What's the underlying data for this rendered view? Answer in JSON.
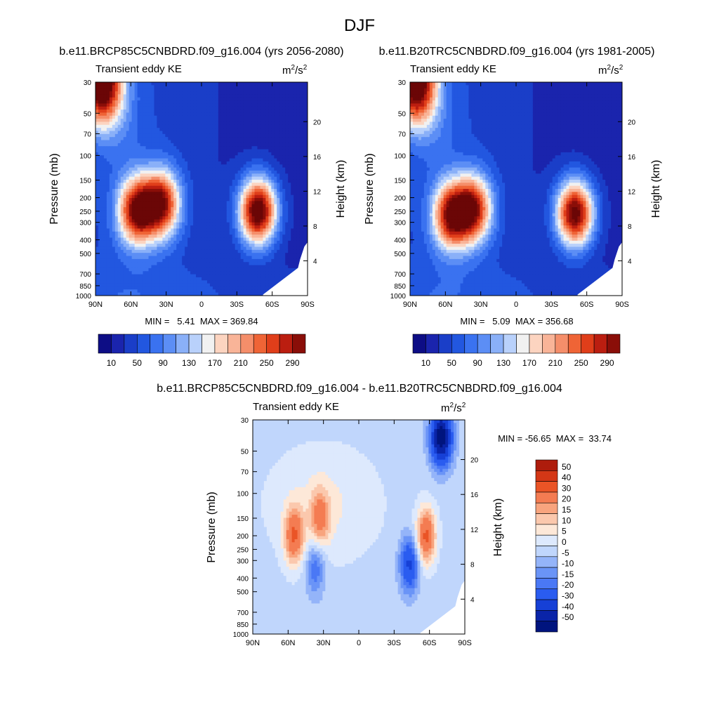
{
  "page": {
    "title": "DJF"
  },
  "colors": {
    "abs_levels": [
      "#0d0d85",
      "#1a24ad",
      "#1a3ec8",
      "#2257e0",
      "#3a72f0",
      "#5c8ef5",
      "#8ab0f8",
      "#b9d1fb",
      "#f1f1f1",
      "#fcd4c0",
      "#f9b498",
      "#f58e6a",
      "#ef6436",
      "#e03e1a",
      "#bb1e10",
      "#8a0e08",
      "#6b0606"
    ],
    "diff_levels": [
      "#00147e",
      "#0a24a8",
      "#1640d6",
      "#2a5cf0",
      "#4a78f5",
      "#6a94f7",
      "#94b4f9",
      "#c0d6fc",
      "#dde9fd",
      "#fde8d8",
      "#fbc8ad",
      "#f8a47e",
      "#f47c52",
      "#ea5426",
      "#d43716",
      "#ae1c0c"
    ]
  },
  "chart_data": [
    {
      "type": "heatmap",
      "panel": "top-left",
      "title": "b.e11.BRCP85C5CNBDRD.f09_g16.004 (yrs 2056-2080)",
      "subtitle_left": "Transient eddy KE",
      "units_base": "m",
      "units_sup1": "2",
      "units_mid": "/s",
      "units_sup2": "2",
      "ylabel": "Pressure (mb)",
      "ylabel_right": "Height (km)",
      "x_ticks": [
        "90N",
        "60N",
        "30N",
        "0",
        "30S",
        "60S",
        "90S"
      ],
      "y_ticks": [
        "30",
        "50",
        "70",
        "100",
        "150",
        "200",
        "250",
        "300",
        "400",
        "500",
        "700",
        "850",
        "1000"
      ],
      "y_right_ticks": [
        "20",
        "16",
        "12",
        "8",
        "4"
      ],
      "stats": "MIN =   5.41  MAX = 369.84",
      "min": 5.41,
      "max": 369.84,
      "colorbar_labels": [
        "10",
        "50",
        "90",
        "130",
        "170",
        "210",
        "250",
        "290"
      ],
      "legend": "below",
      "peaks": [
        {
          "lat": 55,
          "p": 250,
          "value": 300
        },
        {
          "lat": 34,
          "p": 220,
          "value": 290
        },
        {
          "lat": -48,
          "p": 250,
          "value": 360
        },
        {
          "lat": 85,
          "p": 30,
          "value": 370
        }
      ]
    },
    {
      "type": "heatmap",
      "panel": "top-right",
      "title": "b.e11.B20TRC5CNBDRD.f09_g16.004 (yrs 1981-2005)",
      "subtitle_left": "Transient eddy KE",
      "units_base": "m",
      "units_sup1": "2",
      "units_mid": "/s",
      "units_sup2": "2",
      "ylabel": "Pressure (mb)",
      "ylabel_right": "Height (km)",
      "x_ticks": [
        "90N",
        "60N",
        "30N",
        "0",
        "30S",
        "60S",
        "90S"
      ],
      "y_ticks": [
        "30",
        "50",
        "70",
        "100",
        "150",
        "200",
        "250",
        "300",
        "400",
        "500",
        "700",
        "850",
        "1000"
      ],
      "y_right_ticks": [
        "20",
        "16",
        "12",
        "8",
        "4"
      ],
      "stats": "MIN =   5.09  MAX = 356.68",
      "min": 5.09,
      "max": 356.68,
      "colorbar_labels": [
        "10",
        "50",
        "90",
        "130",
        "170",
        "210",
        "250",
        "290"
      ],
      "legend": "below",
      "peaks": [
        {
          "lat": 55,
          "p": 270,
          "value": 290
        },
        {
          "lat": 36,
          "p": 240,
          "value": 275
        },
        {
          "lat": -50,
          "p": 260,
          "value": 345
        },
        {
          "lat": 85,
          "p": 30,
          "value": 356
        }
      ]
    },
    {
      "type": "heatmap",
      "panel": "bottom-difference",
      "title": "b.e11.BRCP85C5CNBDRD.f09_g16.004 - b.e11.B20TRC5CNBDRD.f09_g16.004",
      "subtitle_left": "Transient eddy KE",
      "units_base": "m",
      "units_sup1": "2",
      "units_mid": "/s",
      "units_sup2": "2",
      "ylabel": "Pressure (mb)",
      "ylabel_right": "Height (km)",
      "x_ticks": [
        "90N",
        "60N",
        "30N",
        "0",
        "30S",
        "60S",
        "90S"
      ],
      "y_ticks": [
        "30",
        "50",
        "70",
        "100",
        "150",
        "200",
        "250",
        "300",
        "400",
        "500",
        "700",
        "850",
        "1000"
      ],
      "y_right_ticks": [
        "20",
        "16",
        "12",
        "8",
        "4"
      ],
      "stats": "MIN = -56.65  MAX =  33.74",
      "min": -56.65,
      "max": 33.74,
      "colorbar_labels": [
        "50",
        "40",
        "30",
        "20",
        "15",
        "10",
        "5",
        "0",
        "-5",
        "-10",
        "-15",
        "-20",
        "-30",
        "-40",
        "-50"
      ],
      "legend": "right",
      "peaks": [
        {
          "lat": 55,
          "p": 200,
          "value": 30
        },
        {
          "lat": 33,
          "p": 150,
          "value": 22
        },
        {
          "lat": -57,
          "p": 200,
          "value": 34
        },
        {
          "lat": -70,
          "p": 40,
          "value": -56
        },
        {
          "lat": 37,
          "p": 340,
          "value": -18
        },
        {
          "lat": -43,
          "p": 320,
          "value": -30
        }
      ]
    }
  ]
}
